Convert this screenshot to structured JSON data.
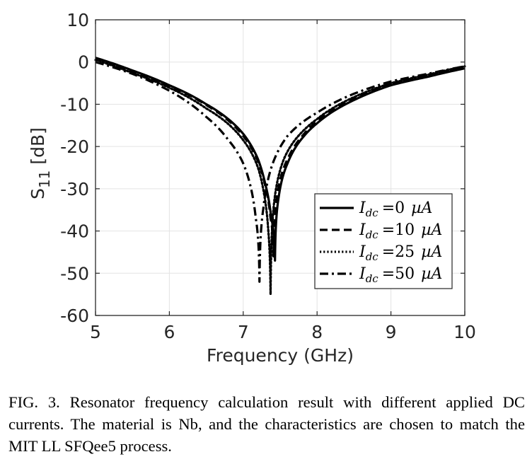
{
  "chart_data": {
    "type": "line",
    "title": "",
    "xlabel": "Frequency (GHz)",
    "ylabel_main": "S",
    "ylabel_sub": "11",
    "ylabel_unit": "[dB]",
    "xlim": [
      5,
      10
    ],
    "ylim": [
      -60,
      10
    ],
    "xticks": [
      "5",
      "6",
      "7",
      "8",
      "9",
      "10"
    ],
    "yticks": [
      "10",
      "0",
      "-10",
      "-20",
      "-30",
      "-40",
      "-50",
      "-60"
    ],
    "grid": true,
    "legend_position": "lower-right",
    "series": [
      {
        "name": "I_dc = 0 µA",
        "legend_prefix": "I",
        "legend_sub": "dc",
        "legend_value": "=0",
        "legend_unit": "µA",
        "style": "solid",
        "resonance_ghz": 7.43,
        "min_db": -47,
        "x": [
          5.0,
          5.5,
          6.0,
          6.5,
          7.0,
          7.2,
          7.3,
          7.38,
          7.43,
          7.48,
          7.6,
          7.8,
          8.0,
          8.5,
          9.0,
          9.5,
          10.0
        ],
        "values": [
          1,
          -2,
          -5.5,
          -10,
          -17,
          -23,
          -29,
          -37,
          -47,
          -32,
          -24,
          -18,
          -14.5,
          -9,
          -5.5,
          -3.5,
          -1.5
        ]
      },
      {
        "name": "I_dc = 10 µA",
        "legend_prefix": "I",
        "legend_sub": "dc",
        "legend_value": "=10",
        "legend_unit": "µA",
        "style": "dashed",
        "resonance_ghz": 7.41,
        "min_db": -46,
        "x": [
          5.0,
          5.5,
          6.0,
          6.5,
          7.0,
          7.2,
          7.3,
          7.37,
          7.41,
          7.46,
          7.6,
          7.8,
          8.0,
          8.5,
          9.0,
          9.5,
          10.0
        ],
        "values": [
          1,
          -2.2,
          -5.7,
          -10.2,
          -17.5,
          -23.5,
          -29.5,
          -37,
          -46,
          -31.5,
          -23,
          -17.5,
          -14,
          -8.7,
          -5.3,
          -3.3,
          -1.3
        ]
      },
      {
        "name": "I_dc = 25 µA",
        "legend_prefix": "I",
        "legend_sub": "dc",
        "legend_value": "=25",
        "legend_unit": "µA",
        "style": "dotted",
        "resonance_ghz": 7.37,
        "min_db": -55,
        "x": [
          5.0,
          5.5,
          6.0,
          6.5,
          7.0,
          7.2,
          7.28,
          7.34,
          7.37,
          7.42,
          7.55,
          7.8,
          8.0,
          8.5,
          9.0,
          9.5,
          10.0
        ],
        "values": [
          0.5,
          -2.6,
          -6.1,
          -11,
          -18.5,
          -25,
          -31,
          -40,
          -55,
          -33,
          -23,
          -16.5,
          -13.5,
          -8.3,
          -5,
          -3,
          -1
        ]
      },
      {
        "name": "I_dc = 50 µA",
        "legend_prefix": "I",
        "legend_sub": "dc",
        "legend_value": "=50",
        "legend_unit": "µA",
        "style": "dashdot",
        "resonance_ghz": 7.22,
        "min_db": -52,
        "x": [
          5.0,
          5.5,
          6.0,
          6.5,
          6.8,
          7.0,
          7.1,
          7.17,
          7.22,
          7.27,
          7.4,
          7.6,
          8.0,
          8.5,
          9.0,
          9.5,
          10.0
        ],
        "values": [
          0,
          -2.8,
          -6.8,
          -13,
          -18.5,
          -24,
          -29.5,
          -37,
          -52,
          -35,
          -24,
          -17.5,
          -12,
          -7.5,
          -4.6,
          -2.8,
          -1
        ]
      }
    ]
  },
  "caption": {
    "text": "FIG. 3. Resonator frequency calculation result with different applied DC currents. The material is Nb, and the characteristics are chosen to match the MIT LL SFQee5 process."
  }
}
